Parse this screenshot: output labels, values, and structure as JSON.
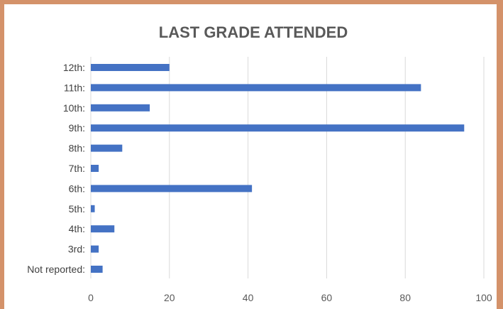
{
  "chart_data": {
    "type": "bar",
    "orientation": "horizontal",
    "title": "LAST GRADE ATTENDED",
    "categories": [
      "12th:",
      "11th:",
      "10th:",
      "9th:",
      "8th:",
      "7th:",
      "6th:",
      "5th:",
      "4th:",
      "3rd:",
      "Not reported:"
    ],
    "values": [
      20,
      84,
      15,
      95,
      8,
      2,
      41,
      1,
      6,
      2,
      3
    ],
    "xlim": [
      0,
      100
    ],
    "xticks": [
      0,
      20,
      40,
      60,
      80,
      100
    ],
    "grid": true,
    "legend": "none",
    "bar_color": "#4472C4",
    "frame_color": "#D4926A"
  }
}
